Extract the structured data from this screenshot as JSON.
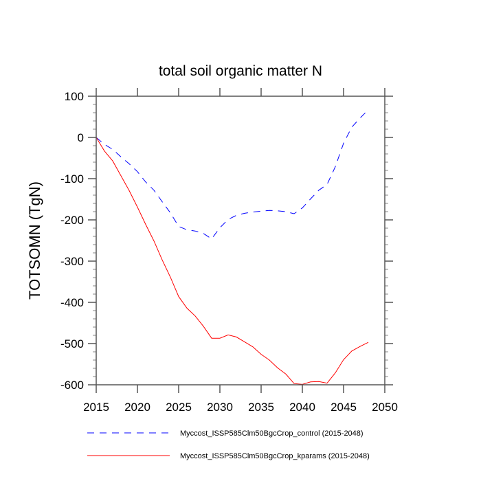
{
  "chart_data": {
    "type": "line",
    "title": "total soil organic matter N",
    "xlabel": "",
    "ylabel": "TOTSOMN  (TgN)",
    "xlim": [
      2015,
      2050
    ],
    "ylim": [
      -600,
      100
    ],
    "xticks": [
      2015,
      2020,
      2025,
      2030,
      2035,
      2040,
      2045,
      2050
    ],
    "yticks": [
      100,
      0,
      -100,
      -200,
      -300,
      -400,
      -500,
      -600
    ],
    "grid": false,
    "legend_position": "bottom",
    "x": [
      2015,
      2016,
      2017,
      2018,
      2019,
      2020,
      2021,
      2022,
      2023,
      2024,
      2025,
      2026,
      2027,
      2028,
      2029,
      2030,
      2031,
      2032,
      2033,
      2034,
      2035,
      2036,
      2037,
      2038,
      2039,
      2040,
      2041,
      2042,
      2043,
      2044,
      2045,
      2046,
      2047,
      2048
    ],
    "series": [
      {
        "name": "Myccost_ISSP585Clm50BgcCrop_control (2015-2048)",
        "color": "#0000ff",
        "dash": "dashed",
        "values": [
          0,
          -17,
          -29,
          -47,
          -64,
          -83,
          -108,
          -128,
          -156,
          -183,
          -216,
          -224,
          -227,
          -233,
          -246,
          -219,
          -199,
          -189,
          -184,
          -181,
          -179,
          -177,
          -178,
          -180,
          -185,
          -171,
          -149,
          -128,
          -114,
          -71,
          -14,
          25,
          47,
          67
        ]
      },
      {
        "name": "Myccost_ISSP585Clm50BgcCrop_kparams (2015-2048)",
        "color": "#ff0000",
        "dash": "solid",
        "values": [
          0,
          -33,
          -57,
          -93,
          -129,
          -169,
          -211,
          -251,
          -297,
          -339,
          -386,
          -414,
          -433,
          -458,
          -487,
          -487,
          -479,
          -484,
          -496,
          -508,
          -526,
          -540,
          -559,
          -574,
          -597,
          -599,
          -593,
          -592,
          -596,
          -571,
          -539,
          -518,
          -507,
          -497
        ]
      }
    ]
  }
}
